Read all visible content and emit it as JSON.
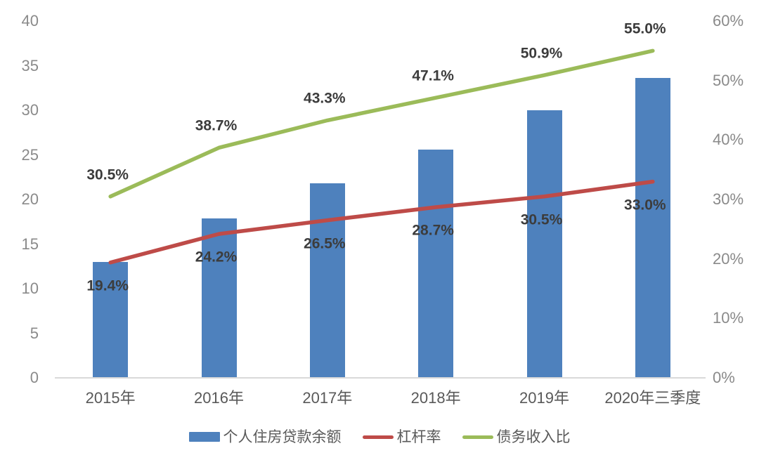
{
  "colors": {
    "bar_blue": "#4e81bd",
    "line_red": "#be4b48",
    "line_green": "#9bbb59",
    "axis_tick_gray": "#8a8a8a",
    "x_label_gray": "#595959",
    "data_label_dark": "#3c3c3c",
    "baseline_gray": "#d9d9d9"
  },
  "chart_data": {
    "type": "bar",
    "subtype": "combo-bar-line",
    "title": "",
    "categories": [
      "2015年",
      "2016年",
      "2017年",
      "2018年",
      "2019年",
      "2020年三季度"
    ],
    "series": [
      {
        "name": "个人住房贷款余额",
        "kind": "bar",
        "axis": "left",
        "color": "#4e81bd",
        "values": [
          13.0,
          17.9,
          21.8,
          25.6,
          30.0,
          33.6
        ]
      },
      {
        "name": "杠杆率",
        "kind": "line",
        "axis": "right",
        "color": "#be4b48",
        "values": [
          19.4,
          24.2,
          26.5,
          28.7,
          30.5,
          33.0
        ],
        "point_labels": [
          "19.4%",
          "24.2%",
          "26.5%",
          "28.7%",
          "30.5%",
          "33.0%"
        ],
        "label_side": "below"
      },
      {
        "name": "债务收入比",
        "kind": "line",
        "axis": "right",
        "color": "#9bbb59",
        "values": [
          30.5,
          38.7,
          43.3,
          47.1,
          50.9,
          55.0
        ],
        "point_labels": [
          "30.5%",
          "38.7%",
          "43.3%",
          "47.1%",
          "50.9%",
          "55.0%"
        ],
        "label_side": "above"
      }
    ],
    "left_axis": {
      "min": 0,
      "max": 40,
      "step": 5,
      "ticks": [
        {
          "value": 0,
          "label": "0"
        },
        {
          "value": 5,
          "label": "5"
        },
        {
          "value": 10,
          "label": "10"
        },
        {
          "value": 15,
          "label": "15"
        },
        {
          "value": 20,
          "label": "20"
        },
        {
          "value": 25,
          "label": "25"
        },
        {
          "value": 30,
          "label": "30"
        },
        {
          "value": 35,
          "label": "35"
        },
        {
          "value": 40,
          "label": "40"
        }
      ]
    },
    "right_axis": {
      "min": 0,
      "max": 60,
      "step": 10,
      "ticks": [
        {
          "value": 0,
          "label": "0%"
        },
        {
          "value": 10,
          "label": "10%"
        },
        {
          "value": 20,
          "label": "20%"
        },
        {
          "value": 30,
          "label": "30%"
        },
        {
          "value": 40,
          "label": "40%"
        },
        {
          "value": 50,
          "label": "50%"
        },
        {
          "value": 60,
          "label": "60%"
        }
      ]
    },
    "grid": false,
    "legend_position": "bottom",
    "legend": [
      {
        "label": "个人住房贷款余额",
        "swatch": "bar",
        "color": "#4e81bd"
      },
      {
        "label": "杠杆率",
        "swatch": "line",
        "color": "#be4b48"
      },
      {
        "label": "债务收入比",
        "swatch": "line",
        "color": "#9bbb59"
      }
    ]
  }
}
